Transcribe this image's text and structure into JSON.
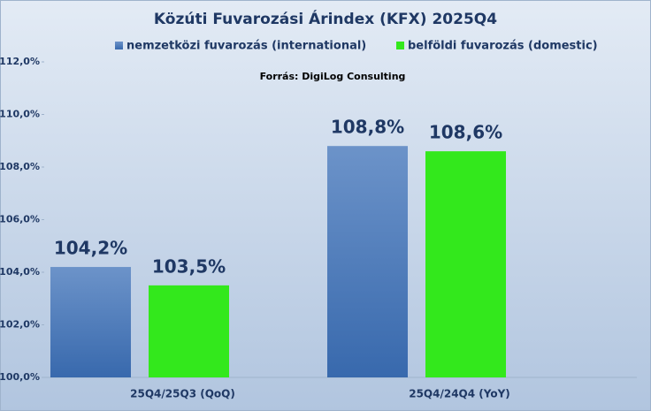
{
  "chart_data": {
    "type": "bar",
    "title": "Közúti Fuvarozási Árindex (KFX) 2025Q4",
    "source": "Forrás: DigiLog Consulting",
    "categories": [
      "25Q4/25Q3 (QoQ)",
      "25Q4/24Q4 (YoY)"
    ],
    "series": [
      {
        "name": "nemzetközi fuvarozás (international)",
        "color": "#4a78b8",
        "values": [
          104.2,
          108.8
        ],
        "value_labels": [
          "104,2%",
          "108,8%"
        ]
      },
      {
        "name": "belföldi fuvarozás (domestic)",
        "color": "#33e81c",
        "values": [
          103.5,
          108.6
        ],
        "value_labels": [
          "103,5%",
          "108,6%"
        ]
      }
    ],
    "ylim": [
      100,
      112
    ],
    "yticks": [
      {
        "value": 100,
        "label": "100,0%"
      },
      {
        "value": 102,
        "label": "102,0%"
      },
      {
        "value": 104,
        "label": "104,0%"
      },
      {
        "value": 106,
        "label": "106,0%"
      },
      {
        "value": 108,
        "label": "108,0%"
      },
      {
        "value": 110,
        "label": "110,0%"
      },
      {
        "value": 112,
        "label": "112,0%"
      }
    ]
  }
}
